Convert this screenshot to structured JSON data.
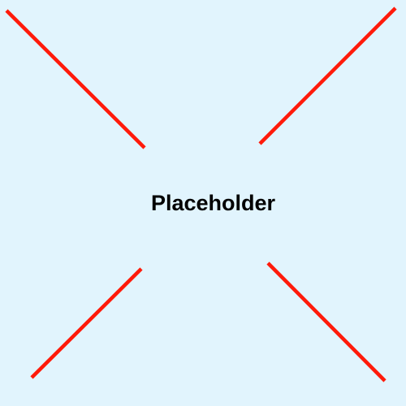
{
  "placeholder": {
    "label": "Placeholder",
    "background_color": "#E1F4FD",
    "line_color": "#FF1A0A"
  }
}
